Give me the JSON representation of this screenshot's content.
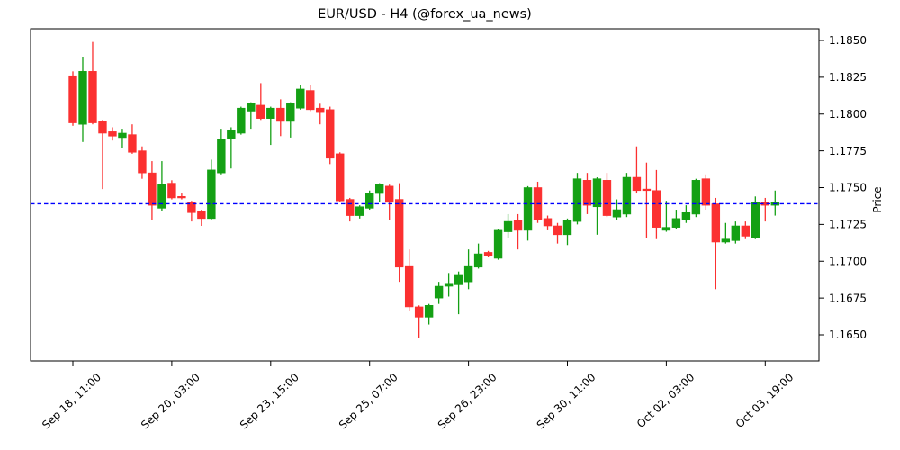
{
  "title": "EUR/USD - H4 (@forex_ua_news)",
  "colors": {
    "up": "#14a014",
    "down": "#fb3030",
    "hline": "#0000ff",
    "spine": "#000000",
    "background": "#ffffff",
    "text": "#000000"
  },
  "chart_data": {
    "type": "candlestick",
    "title": "EUR/USD - H4 (@forex_ua_news)",
    "ylabel": "Price",
    "timeframe": "H4",
    "ylim": [
      1.1632,
      1.1858
    ],
    "grid": false,
    "hline": 1.1739,
    "hline_style": "dashed-blue",
    "y_ticks": [
      1.185,
      1.1825,
      1.18,
      1.1775,
      1.175,
      1.1725,
      1.17,
      1.1675,
      1.165
    ],
    "y_tick_labels": [
      "1.1850",
      "1.1825",
      "1.1800",
      "1.1775",
      "1.1750",
      "1.1725",
      "1.1700",
      "1.1675",
      "1.1650"
    ],
    "x_ticks": [
      {
        "i": 0,
        "label": "Sep 18, 11:00"
      },
      {
        "i": 10,
        "label": "Sep 20, 03:00"
      },
      {
        "i": 20,
        "label": "Sep 23, 15:00"
      },
      {
        "i": 30,
        "label": "Sep 25, 07:00"
      },
      {
        "i": 40,
        "label": "Sep 26, 23:00"
      },
      {
        "i": 50,
        "label": "Sep 30, 11:00"
      },
      {
        "i": 60,
        "label": "Oct 02, 03:00"
      },
      {
        "i": 70,
        "label": "Oct 03, 19:00"
      }
    ],
    "candles_format": [
      "open",
      "high",
      "low",
      "close"
    ],
    "candles": [
      [
        1.1826,
        1.1829,
        1.1792,
        1.1794
      ],
      [
        1.1793,
        1.1839,
        1.1781,
        1.1829
      ],
      [
        1.1829,
        1.1849,
        1.1793,
        1.1794
      ],
      [
        1.1795,
        1.1796,
        1.1749,
        1.1787
      ],
      [
        1.1788,
        1.1791,
        1.1782,
        1.1785
      ],
      [
        1.1784,
        1.179,
        1.1777,
        1.1787
      ],
      [
        1.1786,
        1.1793,
        1.1773,
        1.1774
      ],
      [
        1.1775,
        1.1778,
        1.1756,
        1.176
      ],
      [
        1.176,
        1.1768,
        1.1728,
        1.1738
      ],
      [
        1.1736,
        1.1768,
        1.1734,
        1.1752
      ],
      [
        1.1753,
        1.1755,
        1.1742,
        1.1743
      ],
      [
        1.1744,
        1.1746,
        1.1742,
        1.1743
      ],
      [
        1.174,
        1.1741,
        1.1727,
        1.1733
      ],
      [
        1.1734,
        1.1735,
        1.1724,
        1.1729
      ],
      [
        1.1729,
        1.1769,
        1.1728,
        1.1762
      ],
      [
        1.176,
        1.179,
        1.1759,
        1.1783
      ],
      [
        1.1783,
        1.1791,
        1.1763,
        1.1789
      ],
      [
        1.1787,
        1.1805,
        1.1786,
        1.1804
      ],
      [
        1.1802,
        1.1808,
        1.179,
        1.1807
      ],
      [
        1.1806,
        1.1821,
        1.1796,
        1.1797
      ],
      [
        1.1797,
        1.1805,
        1.1779,
        1.1804
      ],
      [
        1.1804,
        1.181,
        1.1785,
        1.1795
      ],
      [
        1.1795,
        1.1808,
        1.1784,
        1.1807
      ],
      [
        1.1804,
        1.182,
        1.1803,
        1.1817
      ],
      [
        1.1816,
        1.182,
        1.1802,
        1.1803
      ],
      [
        1.1804,
        1.1807,
        1.1793,
        1.1801
      ],
      [
        1.1803,
        1.1805,
        1.1766,
        1.177
      ],
      [
        1.1773,
        1.1774,
        1.174,
        1.1741
      ],
      [
        1.1742,
        1.1743,
        1.1727,
        1.1731
      ],
      [
        1.1731,
        1.1738,
        1.1729,
        1.1737
      ],
      [
        1.1736,
        1.1748,
        1.1735,
        1.1746
      ],
      [
        1.1746,
        1.1753,
        1.174,
        1.1752
      ],
      [
        1.1751,
        1.1752,
        1.1728,
        1.174
      ],
      [
        1.1742,
        1.1753,
        1.1686,
        1.1696
      ],
      [
        1.1697,
        1.1708,
        1.1666,
        1.1669
      ],
      [
        1.1669,
        1.167,
        1.1648,
        1.1662
      ],
      [
        1.1662,
        1.1671,
        1.1657,
        1.167
      ],
      [
        1.1675,
        1.1686,
        1.1671,
        1.1683
      ],
      [
        1.1683,
        1.1692,
        1.1676,
        1.1685
      ],
      [
        1.1684,
        1.1693,
        1.1664,
        1.1691
      ],
      [
        1.1686,
        1.1708,
        1.1681,
        1.1697
      ],
      [
        1.1696,
        1.1712,
        1.1695,
        1.1705
      ],
      [
        1.1706,
        1.1707,
        1.1703,
        1.1704
      ],
      [
        1.1702,
        1.1722,
        1.1701,
        1.1721
      ],
      [
        1.172,
        1.1732,
        1.1716,
        1.1727
      ],
      [
        1.1728,
        1.1732,
        1.1708,
        1.1721
      ],
      [
        1.1721,
        1.1751,
        1.1714,
        1.175
      ],
      [
        1.175,
        1.1754,
        1.1726,
        1.1728
      ],
      [
        1.1729,
        1.1731,
        1.1721,
        1.1724
      ],
      [
        1.1724,
        1.1726,
        1.1712,
        1.1718
      ],
      [
        1.1718,
        1.1729,
        1.1711,
        1.1728
      ],
      [
        1.1727,
        1.176,
        1.1725,
        1.1756
      ],
      [
        1.1755,
        1.176,
        1.1732,
        1.1738
      ],
      [
        1.1737,
        1.1757,
        1.1718,
        1.1756
      ],
      [
        1.1755,
        1.176,
        1.173,
        1.1731
      ],
      [
        1.173,
        1.1742,
        1.1728,
        1.1735
      ],
      [
        1.1732,
        1.176,
        1.173,
        1.1757
      ],
      [
        1.1757,
        1.1778,
        1.1746,
        1.1748
      ],
      [
        1.1749,
        1.1767,
        1.1716,
        1.1748
      ],
      [
        1.1748,
        1.1762,
        1.1715,
        1.1723
      ],
      [
        1.1721,
        1.1741,
        1.172,
        1.1723
      ],
      [
        1.1723,
        1.1735,
        1.1722,
        1.1729
      ],
      [
        1.1728,
        1.1738,
        1.1726,
        1.1733
      ],
      [
        1.1732,
        1.1756,
        1.173,
        1.1755
      ],
      [
        1.1756,
        1.1759,
        1.1735,
        1.1738
      ],
      [
        1.1739,
        1.1743,
        1.1681,
        1.1713
      ],
      [
        1.1713,
        1.1726,
        1.1712,
        1.1715
      ],
      [
        1.1714,
        1.1727,
        1.1712,
        1.1724
      ],
      [
        1.1724,
        1.1727,
        1.1715,
        1.1717
      ],
      [
        1.1716,
        1.1744,
        1.1715,
        1.174
      ],
      [
        1.174,
        1.1743,
        1.1727,
        1.1738
      ],
      [
        1.1738,
        1.1748,
        1.1731,
        1.174
      ]
    ]
  }
}
